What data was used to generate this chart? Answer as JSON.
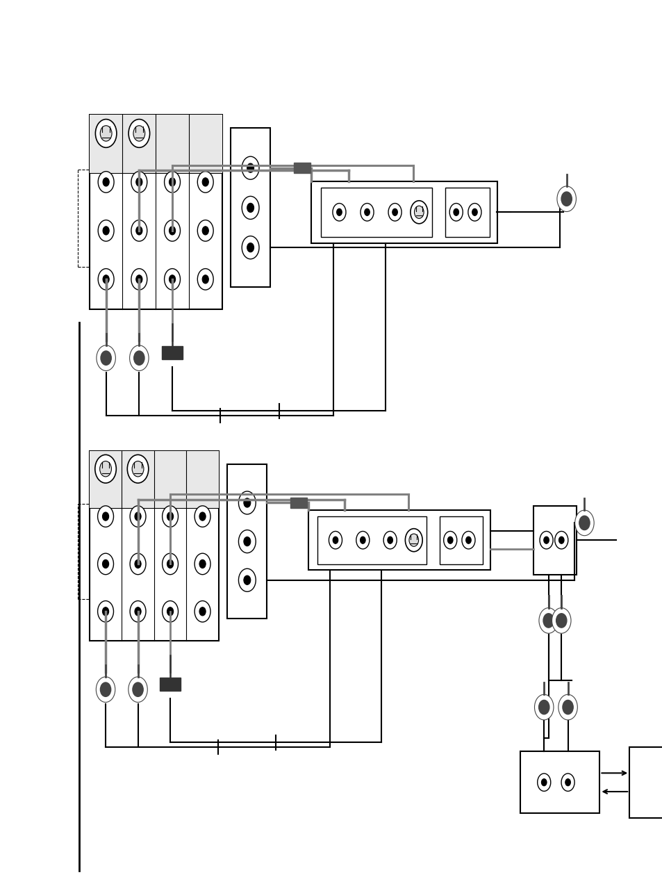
{
  "bg_color": "#ffffff",
  "line_color": "#000000",
  "gray_color": "#808080",
  "light_gray": "#aaaaaa"
}
